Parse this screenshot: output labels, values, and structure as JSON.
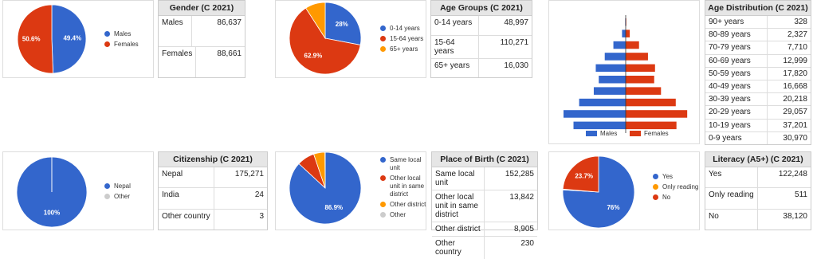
{
  "chart_data": [
    {
      "type": "pie",
      "categories": [
        "Males",
        "Females"
      ],
      "values": [
        49.4,
        50.6
      ],
      "value_labels": [
        "49.4%",
        "50.6%"
      ],
      "colors": [
        "#3366cc",
        "#dc3912"
      ]
    },
    {
      "type": "pie",
      "categories": [
        "0-14 years",
        "15-64 years",
        "65+ years"
      ],
      "values": [
        28,
        62.9,
        9.1
      ],
      "value_labels": [
        "28%",
        "62.9%",
        null
      ],
      "colors": [
        "#3366cc",
        "#dc3912",
        "#ff9900"
      ]
    },
    {
      "type": "pyramid",
      "series": [
        {
          "name": "Males",
          "color": "#3366cc",
          "values": [
            150,
            1100,
            3700,
            6300,
            9000,
            8100,
            9600,
            14000,
            18700,
            15700
          ]
        },
        {
          "name": "Females",
          "color": "#dc3912",
          "values": [
            178,
            1227,
            4010,
            6699,
            8820,
            8568,
            10618,
            15057,
            18501,
            15270
          ]
        }
      ]
    },
    {
      "type": "pie",
      "categories": [
        "Nepal",
        "Other"
      ],
      "values": [
        99.98,
        0.02
      ],
      "value_labels": [
        "100%",
        null
      ],
      "colors": [
        "#3366cc",
        "#cccccc"
      ]
    },
    {
      "type": "pie",
      "categories": [
        "Same local unit",
        "Other local unit in same district",
        "Other district",
        "Other"
      ],
      "values": [
        86.9,
        7.9,
        5.1,
        0.1
      ],
      "value_labels": [
        "86.9%",
        null,
        null,
        null
      ],
      "colors": [
        "#3366cc",
        "#dc3912",
        "#ff9900",
        "#cccccc"
      ]
    },
    {
      "type": "pie",
      "categories": [
        "Yes",
        "Only reading",
        "No"
      ],
      "values": [
        76,
        0.3,
        23.7
      ],
      "value_labels": [
        "76%",
        null,
        "23.7%"
      ],
      "colors": [
        "#3366cc",
        "#ff9900",
        "#dc3912"
      ]
    }
  ],
  "tables": [
    {
      "title": "Gender (C 2021)",
      "rows": [
        [
          "Males",
          "86,637"
        ],
        [
          "Females",
          "88,661"
        ]
      ]
    },
    {
      "title": "Age Groups (C 2021)",
      "rows": [
        [
          "0-14 years",
          "48,997"
        ],
        [
          "15-64 years",
          "110,271"
        ],
        [
          "65+ years",
          "16,030"
        ]
      ]
    },
    {
      "title": "Age Distribution (C 2021)",
      "rows": [
        [
          "90+ years",
          "328"
        ],
        [
          "80-89 years",
          "2,327"
        ],
        [
          "70-79 years",
          "7,710"
        ],
        [
          "60-69 years",
          "12,999"
        ],
        [
          "50-59 years",
          "17,820"
        ],
        [
          "40-49 years",
          "16,668"
        ],
        [
          "30-39 years",
          "20,218"
        ],
        [
          "20-29 years",
          "29,057"
        ],
        [
          "10-19 years",
          "37,201"
        ],
        [
          "0-9 years",
          "30,970"
        ]
      ]
    },
    {
      "title": "Citizenship (C 2021)",
      "rows": [
        [
          "Nepal",
          "175,271"
        ],
        [
          "India",
          "24"
        ],
        [
          "Other country",
          "3"
        ]
      ]
    },
    {
      "title": "Place of Birth (C 2021)",
      "rows": [
        [
          "Same local unit",
          "152,285"
        ],
        [
          "Other local unit in same district",
          "13,842"
        ],
        [
          "Other district",
          "8,905"
        ],
        [
          "Other country",
          "230"
        ]
      ]
    },
    {
      "title": "Literacy (A5+) (C 2021)",
      "rows": [
        [
          "Yes",
          "122,248"
        ],
        [
          "Only reading",
          "511"
        ],
        [
          "No",
          "38,120"
        ]
      ]
    }
  ]
}
